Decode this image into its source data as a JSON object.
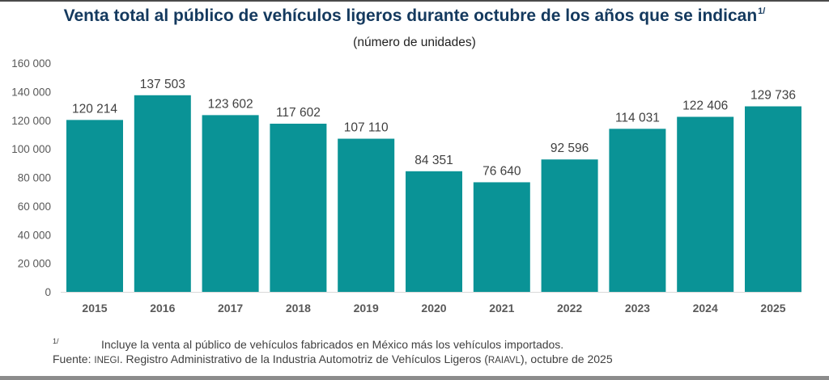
{
  "title": {
    "text": "Venta total al público de vehículos ligeros durante octubre de los años que se indican",
    "footnote_ref": "1/"
  },
  "subtitle": "(número de unidades)",
  "footnote": {
    "mark": "1/",
    "text": "Incluye la venta al público de vehículos fabricados en México más los vehículos importados."
  },
  "source": {
    "prefix": "Fuente:",
    "org": "INEGI",
    "text1": ". Registro Administrativo de la Industria Automotriz de Vehículos Ligeros (",
    "abbr": "RAIAVL",
    "text2": "), octubre de 2025"
  },
  "colors": {
    "bar": "#0a9396",
    "title": "#14395e",
    "axis": "#d9d9d9"
  },
  "chart_data": {
    "type": "bar",
    "title": "Venta total al público de vehículos ligeros durante octubre de los años que se indican",
    "subtitle": "(número de unidades)",
    "xlabel": "",
    "ylabel": "",
    "categories": [
      "2015",
      "2016",
      "2017",
      "2018",
      "2019",
      "2020",
      "2021",
      "2022",
      "2023",
      "2024",
      "2025"
    ],
    "values": [
      120214,
      137503,
      123602,
      117602,
      107110,
      84351,
      76640,
      92596,
      114031,
      122406,
      129736
    ],
    "data_labels": [
      "120 214",
      "137 503",
      "123 602",
      "117 602",
      "107 110",
      "84 351",
      "76 640",
      "92 596",
      "114 031",
      "122 406",
      "129 736"
    ],
    "ylim": [
      0,
      160000
    ],
    "yticks": [
      0,
      20000,
      40000,
      60000,
      80000,
      100000,
      120000,
      140000,
      160000
    ],
    "ytick_labels": [
      "0",
      "20 000",
      "40 000",
      "60 000",
      "80 000",
      "100 000",
      "120 000",
      "140 000",
      "160 000"
    ],
    "grid": false,
    "legend": "none"
  }
}
